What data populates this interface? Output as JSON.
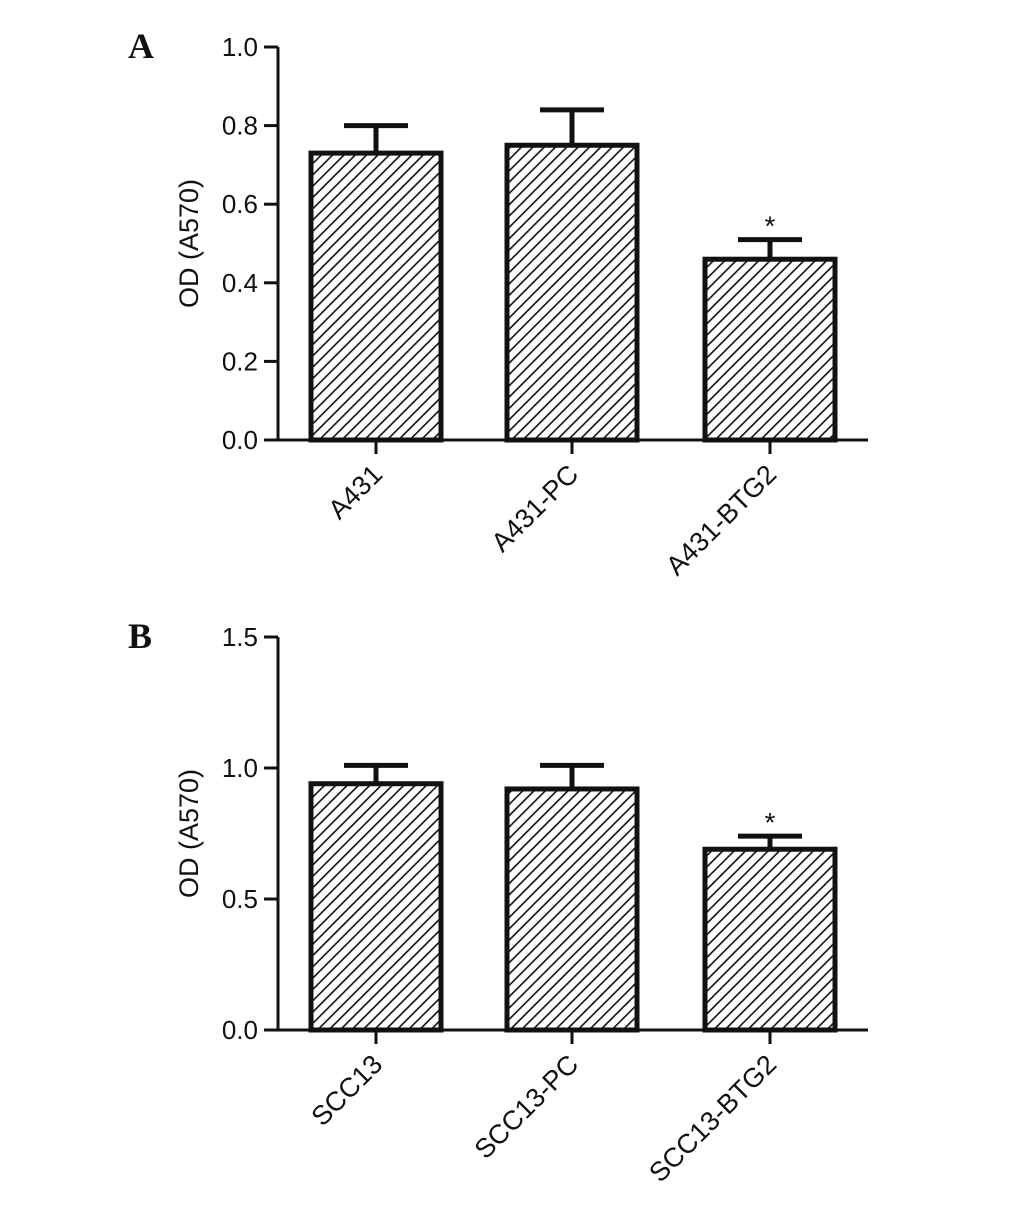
{
  "chart_data": [
    {
      "panel": "A",
      "type": "bar",
      "ylabel": "OD (A570)",
      "ylim": [
        0,
        1.0
      ],
      "yticks": [
        "0.0",
        "0.2",
        "0.4",
        "0.6",
        "0.8",
        "1.0"
      ],
      "categories": [
        "A431",
        "A431-PC",
        "A431-BTG2"
      ],
      "values": [
        0.73,
        0.75,
        0.46
      ],
      "errors": [
        0.07,
        0.09,
        0.05
      ],
      "annotations": [
        "",
        "",
        "*"
      ],
      "grid": false,
      "fill": "diagonal-hatch"
    },
    {
      "panel": "B",
      "type": "bar",
      "ylabel": "OD (A570)",
      "ylim": [
        0,
        1.5
      ],
      "yticks": [
        "0.0",
        "0.5",
        "1.0",
        "1.5"
      ],
      "categories": [
        "SCC13",
        "SCC13-PC",
        "SCC13-BTG2"
      ],
      "values": [
        0.94,
        0.92,
        0.69
      ],
      "errors": [
        0.07,
        0.09,
        0.05
      ],
      "annotations": [
        "",
        "",
        "*"
      ],
      "grid": false,
      "fill": "diagonal-hatch"
    }
  ]
}
